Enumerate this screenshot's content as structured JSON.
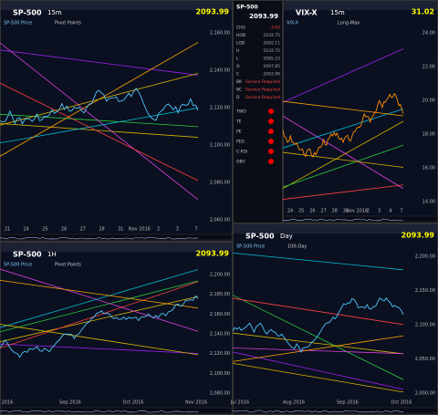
{
  "panels": [
    {
      "symbol": "SP-500",
      "interval": "15m",
      "price": "2093.99",
      "legend": "SP-500 Price",
      "study": "Pivot Points",
      "xlabels": [
        "21",
        "24",
        "25",
        "26",
        "27",
        "28",
        "31",
        "Nov 2016",
        "2",
        "3",
        "7"
      ],
      "ylabels": [
        "2,160.00",
        "2,140.00",
        "2,120.00",
        "2,100.00",
        "2,080.00",
        "2,060.00"
      ]
    },
    {
      "symbol": "VIX-X",
      "interval": "15m",
      "price": "31.02",
      "legend": "VIX-X",
      "study": "Long-Max",
      "xlabels": [
        "24",
        "25",
        "26",
        "27",
        "28",
        "31",
        "Nov 2016",
        "2",
        "3",
        "4",
        "7"
      ],
      "ylabels": [
        "24.00",
        "22.00",
        "20.00",
        "18.00",
        "16.00",
        "14.00"
      ]
    },
    {
      "symbol": "SP-500",
      "interval": "1H",
      "price": "2093.99",
      "legend": "SP-500 Price",
      "study": "Pivot Points",
      "xlabels": [
        "2016",
        "Sep 2016",
        "Oct 2016",
        "Nov 2016"
      ],
      "ylabels": [
        "2,200.00",
        "2,180.00",
        "2,160.00",
        "2,140.00",
        "2,120.00",
        "2,100.00",
        "2,080.00"
      ]
    },
    {
      "symbol": "SP-500",
      "interval": "Day",
      "price": "2093.99",
      "legend": "SP-500 Price",
      "study": "100-Day",
      "xlabels": [
        "Jul 2016",
        "Aug 2016",
        "Sep 2016",
        "Oct 2016"
      ],
      "ylabels": [
        "2,200.00",
        "2,150.00",
        "2,100.00",
        "2,050.00",
        "2,000.00"
      ]
    }
  ],
  "quotes": {
    "symbol": "SP-500",
    "price": "2093.99",
    "rows": [
      [
        "CHG",
        "-3.43"
      ],
      [
        "HOD",
        "2102.75"
      ],
      [
        "LOD",
        "2092.11"
      ],
      [
        "H",
        "2102.75"
      ],
      [
        "L",
        "2085.23"
      ],
      [
        "O",
        "2097.85"
      ],
      [
        "C",
        "2093.99"
      ],
      [
        "BK",
        "Service Required"
      ],
      [
        "BC",
        "Service Required"
      ],
      [
        "D",
        "Service Required"
      ]
    ],
    "signals": [
      "TWO",
      "TE",
      "PE",
      "PEG",
      "C-RSI",
      "OBV"
    ]
  }
}
